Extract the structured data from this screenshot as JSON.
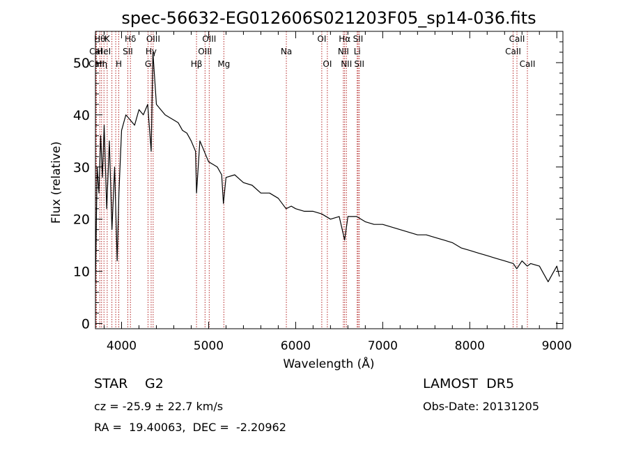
{
  "chart_data": {
    "type": "line",
    "title": "spec-56632-EG012606S021203F05_sp14-036.fits",
    "xlabel": "Wavelength (Å)",
    "ylabel": "Flux (relative)",
    "xlim": [
      3700,
      9070
    ],
    "ylim": [
      -1,
      56
    ],
    "xticks": [
      4000,
      5000,
      6000,
      7000,
      8000,
      9000
    ],
    "yticks": [
      0,
      10,
      20,
      30,
      40,
      50
    ],
    "grid": false,
    "line_color": "#000000",
    "marker_line_color": "#b22222",
    "series": [
      {
        "x": [
          3700,
          3720,
          3740,
          3760,
          3780,
          3800,
          3830,
          3860,
          3890,
          3920,
          3950,
          3970,
          4000,
          4050,
          4100,
          4150,
          4200,
          4250,
          4300,
          4340,
          4360,
          4400,
          4450,
          4500,
          4550,
          4600,
          4650,
          4700,
          4750,
          4800,
          4850,
          4861,
          4900,
          4950,
          5000,
          5050,
          5100,
          5150,
          5170,
          5200,
          5300,
          5400,
          5500,
          5600,
          5700,
          5800,
          5890,
          5950,
          6000,
          6100,
          6200,
          6300,
          6400,
          6500,
          6563,
          6600,
          6700,
          6800,
          6900,
          7000,
          7100,
          7200,
          7300,
          7400,
          7500,
          7600,
          7700,
          7800,
          7900,
          8000,
          8100,
          8200,
          8300,
          8400,
          8500,
          8540,
          8600,
          8660,
          8700,
          8800,
          8850,
          8900,
          8950,
          9000,
          9030
        ],
        "y": [
          8,
          30,
          25,
          36,
          28,
          38,
          22,
          35,
          18,
          30,
          12,
          25,
          37,
          40,
          39,
          38,
          41,
          40,
          42,
          33,
          52,
          42,
          41,
          40,
          39.5,
          39,
          38.5,
          37,
          36.5,
          35,
          33,
          25,
          35,
          33,
          31,
          30.5,
          30,
          28.5,
          23,
          28,
          28.5,
          27,
          26.5,
          25,
          25,
          24,
          22,
          22.5,
          22,
          21.5,
          21.5,
          21,
          20,
          20.5,
          16,
          20.5,
          20.5,
          19.5,
          19,
          19,
          18.5,
          18,
          17.5,
          17,
          17,
          16.5,
          16,
          15.5,
          14.5,
          14,
          13.5,
          13,
          12.5,
          12,
          11.5,
          10.5,
          12,
          11,
          11.5,
          11,
          9.5,
          8,
          9.5,
          11,
          9
        ]
      }
    ],
    "lines": [
      {
        "x": 3705,
        "label": "Cal",
        "row": 1
      },
      {
        "x": 3712,
        "label": "CaII",
        "row": 2
      },
      {
        "x": 3750,
        "label": "Hθ",
        "row": 0
      },
      {
        "x": 3770,
        "label": "Hη",
        "row": 2
      },
      {
        "x": 3798,
        "label": "HeI",
        "row": 1
      },
      {
        "x": 3835,
        "label": "K",
        "row": 0
      },
      {
        "x": 3889,
        "label": "",
        "row": 0
      },
      {
        "x": 3933,
        "label": "",
        "row": 0
      },
      {
        "x": 3968,
        "label": "H",
        "row": 2
      },
      {
        "x": 4072,
        "label": "SII",
        "row": 1
      },
      {
        "x": 4102,
        "label": "Hδ",
        "row": 0
      },
      {
        "x": 4304,
        "label": "G",
        "row": 2
      },
      {
        "x": 4340,
        "label": "Hγ",
        "row": 1
      },
      {
        "x": 4363,
        "label": "OIII",
        "row": 0
      },
      {
        "x": 4861,
        "label": "Hβ",
        "row": 2
      },
      {
        "x": 4959,
        "label": "OIII",
        "row": 1
      },
      {
        "x": 5007,
        "label": "OIII",
        "row": 0
      },
      {
        "x": 5175,
        "label": "Mg",
        "row": 2
      },
      {
        "x": 5893,
        "label": "Na",
        "row": 1
      },
      {
        "x": 6300,
        "label": "OI",
        "row": 0
      },
      {
        "x": 6364,
        "label": "OI",
        "row": 2
      },
      {
        "x": 6548,
        "label": "NII",
        "row": 1
      },
      {
        "x": 6563,
        "label": "Hα",
        "row": 0
      },
      {
        "x": 6583,
        "label": "NII",
        "row": 2
      },
      {
        "x": 6707,
        "label": "Li",
        "row": 1
      },
      {
        "x": 6717,
        "label": "SII",
        "row": 0
      },
      {
        "x": 6731,
        "label": "SII",
        "row": 2
      },
      {
        "x": 8498,
        "label": "CaII",
        "row": 1
      },
      {
        "x": 8542,
        "label": "CaII",
        "row": 0
      },
      {
        "x": 8662,
        "label": "CaII",
        "row": 2
      }
    ]
  },
  "info": {
    "object_class": "STAR",
    "subclass": "G2",
    "survey": "LAMOST  DR5",
    "redshift_text": "cz = -25.9 ± 22.7 km/s",
    "obs_date_text": "Obs-Date: 20131205",
    "coords_text": "RA =  19.40063,  DEC =  -2.20962"
  }
}
